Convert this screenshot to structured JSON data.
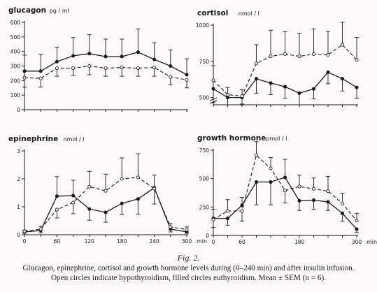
{
  "figure": {
    "label": "Fig. 2.",
    "caption_line1": "Glucagon, epinephrine, cortisol and growth hormone levels during (0–240 min) and after insulin infusion.",
    "caption_line2": "Open circles indicate hypothyroidism, filled circles euthyroidism. Mean ± SEM (n = 6)."
  },
  "chart_data": [
    {
      "type": "line",
      "title": "glucagon",
      "unit": "pg / ml",
      "yticks": [
        0,
        100,
        200,
        300,
        400,
        500,
        600
      ],
      "ytick_labels": [
        "0",
        "100",
        "200",
        "300",
        "400",
        "500",
        "600"
      ],
      "ylim": [
        0,
        600
      ],
      "xlim": [
        0,
        300
      ],
      "xticks": [],
      "xtick_labels": [],
      "xunit": "",
      "series": [
        {
          "marker": "filled",
          "line": "solid",
          "x": [
            0,
            30,
            60,
            90,
            120,
            150,
            180,
            210,
            240,
            270,
            300
          ],
          "y": [
            265,
            265,
            330,
            370,
            385,
            365,
            365,
            395,
            345,
            300,
            240
          ],
          "err": [
            110,
            115,
            100,
            125,
            130,
            120,
            120,
            160,
            115,
            110,
            110
          ]
        },
        {
          "marker": "open",
          "line": "dashed",
          "x": [
            0,
            30,
            60,
            90,
            120,
            150,
            180,
            210,
            240,
            270,
            300
          ],
          "y": [
            220,
            215,
            285,
            285,
            300,
            285,
            290,
            285,
            290,
            225,
            205
          ],
          "err": [
            65,
            60,
            55,
            50,
            60,
            55,
            60,
            55,
            60,
            55,
            55
          ]
        }
      ]
    },
    {
      "type": "line",
      "title": "cortisol",
      "unit": "nmol / l",
      "yticks": [
        500,
        750,
        1000
      ],
      "ytick_labels": [
        "500",
        "750",
        "1000"
      ],
      "ylim": [
        450,
        1000
      ],
      "xlim": [
        0,
        300
      ],
      "axis_break": true,
      "xticks": [],
      "xtick_labels": [],
      "xunit": "",
      "series": [
        {
          "marker": "filled",
          "line": "solid",
          "x": [
            0,
            30,
            60,
            90,
            120,
            150,
            180,
            210,
            240,
            270,
            300
          ],
          "y": [
            560,
            500,
            500,
            630,
            600,
            575,
            530,
            560,
            675,
            630,
            570
          ],
          "err": [
            95,
            50,
            45,
            100,
            80,
            80,
            90,
            70,
            80,
            85,
            75
          ]
        },
        {
          "marker": "open",
          "line": "dashed",
          "x": [
            0,
            30,
            60,
            90,
            120,
            150,
            180,
            210,
            240,
            270,
            300
          ],
          "y": [
            620,
            520,
            510,
            735,
            785,
            800,
            785,
            800,
            795,
            865,
            760
          ],
          "err": [
            100,
            50,
            45,
            130,
            180,
            155,
            160,
            175,
            160,
            155,
            155
          ]
        }
      ]
    },
    {
      "type": "line",
      "title": "epinephrine",
      "unit": "nmol / l",
      "yticks": [
        0,
        1,
        2,
        3
      ],
      "ytick_labels": [
        "0",
        "1",
        "2",
        "3"
      ],
      "ylim": [
        0,
        3
      ],
      "xlim": [
        0,
        300
      ],
      "xticks": [
        0,
        60,
        120,
        180,
        240,
        300
      ],
      "xtick_labels": [
        "0",
        "60",
        "120",
        "180",
        "240",
        "300"
      ],
      "xunit": "min",
      "series": [
        {
          "marker": "filled",
          "line": "solid",
          "x": [
            0,
            30,
            60,
            90,
            120,
            150,
            180,
            210,
            240,
            270,
            300
          ],
          "y": [
            0.1,
            0.15,
            1.38,
            1.4,
            0.92,
            0.8,
            1.12,
            1.28,
            1.68,
            0.2,
            0.1
          ],
          "err": [
            0.05,
            0.08,
            0.7,
            0.55,
            0.4,
            0.35,
            0.4,
            0.55,
            0.45,
            0.1,
            0.05
          ]
        },
        {
          "marker": "open",
          "line": "dashed",
          "x": [
            0,
            30,
            60,
            90,
            120,
            150,
            180,
            210,
            240,
            270,
            300
          ],
          "y": [
            0.12,
            0.2,
            0.9,
            1.15,
            1.72,
            1.57,
            2.0,
            2.05,
            1.65,
            0.28,
            0.18
          ],
          "err": [
            0.05,
            0.1,
            0.3,
            0.4,
            0.55,
            0.6,
            0.75,
            0.85,
            0.55,
            0.12,
            0.1
          ]
        }
      ]
    },
    {
      "type": "line",
      "title": "growth hormone",
      "unit": "pmol / l",
      "yticks": [
        0,
        250,
        500,
        750
      ],
      "ytick_labels": [
        "0",
        "250",
        "500",
        "750"
      ],
      "ylim": [
        0,
        750
      ],
      "xlim": [
        0,
        300
      ],
      "xticks": [
        0,
        30,
        60,
        90,
        120,
        150,
        180,
        210,
        240,
        270,
        300
      ],
      "xtick_labels": [
        "0",
        "",
        "60",
        "",
        "",
        "",
        "180",
        "",
        "",
        "",
        "300"
      ],
      "xunit": "min",
      "series": [
        {
          "marker": "filled",
          "line": "solid",
          "x": [
            0,
            30,
            60,
            90,
            120,
            150,
            180,
            210,
            240,
            270,
            300
          ],
          "y": [
            150,
            150,
            265,
            470,
            470,
            510,
            305,
            310,
            295,
            195,
            55
          ],
          "err": [
            80,
            60,
            70,
            200,
            200,
            160,
            85,
            80,
            75,
            70,
            30
          ]
        },
        {
          "marker": "open",
          "line": "dashed",
          "x": [
            0,
            30,
            60,
            90,
            120,
            150,
            180,
            210,
            240,
            270,
            300
          ],
          "y": [
            140,
            215,
            215,
            705,
            590,
            395,
            430,
            410,
            390,
            280,
            130
          ],
          "err": [
            70,
            100,
            90,
            120,
            95,
            110,
            100,
            95,
            130,
            90,
            65
          ]
        }
      ]
    }
  ]
}
